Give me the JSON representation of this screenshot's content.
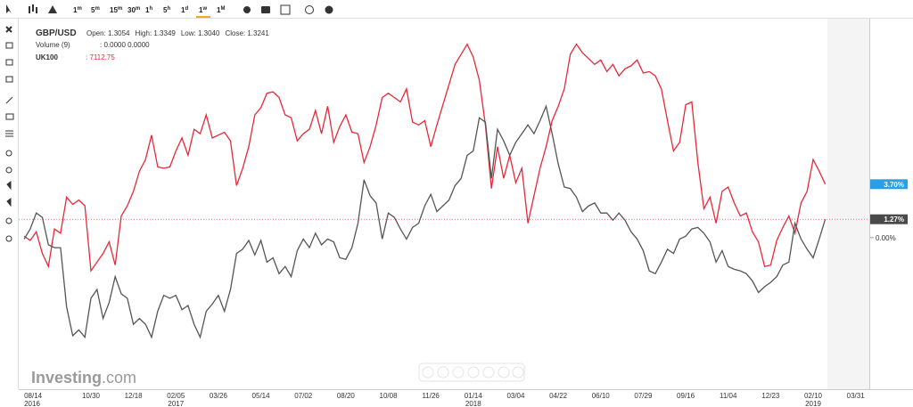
{
  "toolbar": {
    "intervals": [
      [
        "1",
        "m"
      ],
      [
        "5",
        "m"
      ],
      [
        "15",
        "m"
      ],
      [
        "30",
        "m"
      ],
      [
        "1",
        "h"
      ],
      [
        "5",
        "h"
      ],
      [
        "1",
        "d"
      ],
      [
        "1",
        "w"
      ],
      [
        "1",
        "M"
      ]
    ],
    "active": 7
  },
  "chart_data": {
    "type": "line",
    "legend": {
      "instrument": "GBP/USD",
      "ohlc": [
        "Open: 1.3054",
        "High: 1.3349",
        "Low: 1.3040",
        "Close: 1.3241"
      ],
      "volume": "Volume (9)",
      "volume_values": ": 0.0000  0.0000",
      "compare": "UK100",
      "compare_value": ": 7112.75"
    },
    "logo": [
      "Investing",
      ".com"
    ],
    "categories": [
      "08/14\n2016",
      null,
      null,
      null,
      null,
      null,
      null,
      null,
      null,
      null,
      null,
      "10/30",
      null,
      null,
      null,
      null,
      null,
      null,
      "12/18",
      null,
      null,
      null,
      null,
      null,
      null,
      "02/05\n2017",
      null,
      null,
      null,
      null,
      null,
      null,
      "03/26",
      null,
      null,
      null,
      null,
      null,
      null,
      "05/14",
      null,
      null,
      null,
      null,
      null,
      null,
      "07/02",
      null,
      null,
      null,
      null,
      null,
      null,
      "08/20",
      null,
      null,
      null,
      null,
      null,
      null,
      "10/08",
      null,
      null,
      null,
      null,
      null,
      null,
      "11/26",
      null,
      null,
      null,
      null,
      null,
      null,
      "01/14\n2018",
      null,
      null,
      null,
      null,
      null,
      null,
      "03/04",
      null,
      null,
      null,
      null,
      null,
      null,
      "04/22",
      null,
      null,
      null,
      null,
      null,
      null,
      "06/10",
      null,
      null,
      null,
      null,
      null,
      null,
      "07/29",
      null,
      null,
      null,
      null,
      null,
      null,
      "09/16",
      null,
      null,
      null,
      null,
      null,
      null,
      "11/04",
      null,
      null,
      null,
      null,
      null,
      null,
      "12/23",
      null,
      null,
      null,
      null,
      null,
      null,
      "02/10\n2019",
      null,
      null,
      null,
      null,
      null,
      null,
      "03/31"
    ],
    "series": [
      {
        "name": "UK100",
        "color": "#e8283a",
        "label_color": "#2a9fe6",
        "values": [
          0.1,
          -0.2,
          0.4,
          -1.1,
          -2.0,
          0.6,
          0.3,
          2.8,
          2.3,
          2.6,
          2.2,
          -2.3,
          -1.7,
          -1.1,
          -0.3,
          -1.9,
          1.5,
          2.2,
          3.2,
          4.6,
          5.4,
          7.1,
          4.9,
          4.8,
          4.9,
          6.0,
          6.9,
          5.7,
          7.5,
          7.2,
          8.5,
          6.9,
          7.1,
          7.3,
          6.7,
          3.6,
          4.8,
          6.3,
          8.5,
          9.0,
          10.0,
          10.1,
          9.7,
          8.5,
          8.3,
          6.7,
          7.2,
          7.5,
          8.8,
          7.2,
          9.1,
          6.6,
          7.7,
          8.5,
          7.3,
          7.2,
          5.2,
          6.3,
          7.8,
          9.7,
          10.0,
          9.7,
          9.4,
          10.3,
          8.0,
          7.8,
          8.1,
          6.3,
          7.8,
          9.2,
          10.6,
          12.0,
          12.7,
          13.4,
          12.5,
          10.9,
          7.8,
          3.4,
          6.3,
          4.1,
          5.7,
          3.8,
          4.8,
          1.0,
          2.9,
          4.8,
          6.3,
          8.1,
          9.1,
          10.3,
          12.7,
          13.4,
          12.8,
          12.4,
          12.0,
          12.3,
          11.5,
          12.0,
          11.2,
          11.7,
          11.9,
          12.3,
          11.4,
          11.5,
          11.2,
          10.3,
          8.1,
          6.0,
          6.6,
          9.2,
          9.4,
          5.2,
          2.0,
          2.8,
          1.0,
          3.2,
          3.5,
          2.4,
          1.5,
          1.7,
          0.4,
          -0.3,
          -2.0,
          -1.9,
          -0.2,
          0.7,
          1.5,
          0.3,
          2.4,
          3.2,
          5.4,
          4.6,
          3.7,
          null,
          null,
          null,
          null,
          null
        ],
        "value_labels": [
          null,
          null,
          null,
          null,
          null,
          null,
          null,
          null,
          null,
          null,
          null,
          null,
          null,
          null,
          null,
          null,
          null,
          null,
          null,
          null,
          null,
          null,
          null,
          null,
          null,
          null,
          null,
          null,
          null,
          null,
          null,
          null,
          null,
          null,
          null,
          null,
          null,
          null,
          null,
          null,
          null,
          null,
          null,
          null,
          null,
          null,
          null,
          null,
          null,
          null,
          null,
          null,
          null,
          null,
          null,
          null,
          null,
          null,
          null,
          null,
          null,
          null,
          null,
          null,
          null,
          null,
          null,
          null,
          null,
          null,
          null,
          null,
          null,
          null,
          null,
          null,
          null,
          null,
          null,
          null,
          null,
          null,
          null,
          null,
          null,
          null,
          null,
          null,
          null,
          null,
          null,
          null,
          null,
          null,
          null,
          null,
          null,
          null,
          null,
          null,
          null,
          null,
          null,
          null,
          null,
          null,
          null,
          null,
          null,
          null,
          null,
          null,
          null,
          null,
          null,
          null,
          null,
          null,
          null,
          null,
          null,
          null,
          null,
          null,
          null,
          null,
          null,
          null,
          null,
          null,
          null,
          null,
          "3.70%",
          null,
          null,
          null,
          null,
          null
        ]
      },
      {
        "name": "GBP/USD",
        "color": "#555555",
        "label_color": "#4a4a4a",
        "values": [
          -0.1,
          0.6,
          1.7,
          1.4,
          -0.5,
          -0.7,
          -0.7,
          -4.8,
          -6.8,
          -6.4,
          -6.9,
          -4.2,
          -3.6,
          -5.6,
          -4.5,
          -2.7,
          -3.9,
          -4.2,
          -6.0,
          -5.6,
          -6.0,
          -6.9,
          -5.1,
          -4.0,
          -4.2,
          -4.0,
          -5.0,
          -4.7,
          -6.0,
          -6.9,
          -5.1,
          -4.6,
          -4.0,
          -5.1,
          -3.6,
          -1.1,
          -0.8,
          -0.2,
          -1.2,
          -0.2,
          -1.7,
          -1.4,
          -2.5,
          -2.0,
          -2.7,
          -0.9,
          -0.1,
          -0.7,
          0.3,
          -0.5,
          -0.1,
          -0.3,
          -1.4,
          -1.5,
          -0.7,
          1.0,
          4.0,
          2.9,
          2.4,
          -0.1,
          1.7,
          1.4,
          0.6,
          -0.1,
          0.7,
          1.0,
          2.2,
          3.0,
          1.8,
          2.2,
          2.6,
          3.6,
          4.1,
          5.7,
          6.0,
          8.3,
          8.0,
          4.1,
          7.5,
          6.7,
          5.7,
          6.6,
          7.2,
          7.8,
          7.2,
          8.1,
          9.1,
          7.2,
          5.1,
          3.5,
          3.4,
          2.8,
          1.8,
          2.2,
          2.4,
          1.7,
          1.7,
          1.2,
          1.7,
          1.2,
          0.4,
          -0.1,
          -0.9,
          -2.3,
          -2.5,
          -1.7,
          -0.8,
          -1.1,
          -0.1,
          0.1,
          0.6,
          0.7,
          0.3,
          -0.3,
          -1.7,
          -0.9,
          -2.0,
          -2.2,
          -2.3,
          -2.5,
          -3.0,
          -3.8,
          -3.4,
          -3.1,
          -2.7,
          -1.9,
          -1.7,
          1.0,
          -0.1,
          -0.8,
          -1.4,
          -0.1,
          1.27,
          null,
          null,
          null,
          null,
          null
        ],
        "value_labels": [
          null,
          null,
          null,
          null,
          null,
          null,
          null,
          null,
          null,
          null,
          null,
          null,
          null,
          null,
          null,
          null,
          null,
          null,
          null,
          null,
          null,
          null,
          null,
          null,
          null,
          null,
          null,
          null,
          null,
          null,
          null,
          null,
          null,
          null,
          null,
          null,
          null,
          null,
          null,
          null,
          null,
          null,
          null,
          null,
          null,
          null,
          null,
          null,
          null,
          null,
          null,
          null,
          null,
          null,
          null,
          null,
          null,
          null,
          null,
          null,
          null,
          null,
          null,
          null,
          null,
          null,
          null,
          null,
          null,
          null,
          null,
          null,
          null,
          null,
          null,
          null,
          null,
          null,
          null,
          null,
          null,
          null,
          null,
          null,
          null,
          null,
          null,
          null,
          null,
          null,
          null,
          null,
          null,
          null,
          null,
          null,
          null,
          null,
          null,
          null,
          null,
          null,
          null,
          null,
          null,
          null,
          null,
          null,
          null,
          null,
          null,
          null,
          null,
          null,
          null,
          null,
          null,
          null,
          null,
          null,
          null,
          null,
          null,
          null,
          null,
          null,
          null,
          null,
          null,
          null,
          null,
          null,
          "1.27%",
          null,
          null,
          null,
          null,
          null
        ]
      }
    ],
    "ylim": [
      -10.5,
      15.1
    ],
    "yticks": [
      {
        "value": 0,
        "label": "0.00%"
      }
    ]
  }
}
